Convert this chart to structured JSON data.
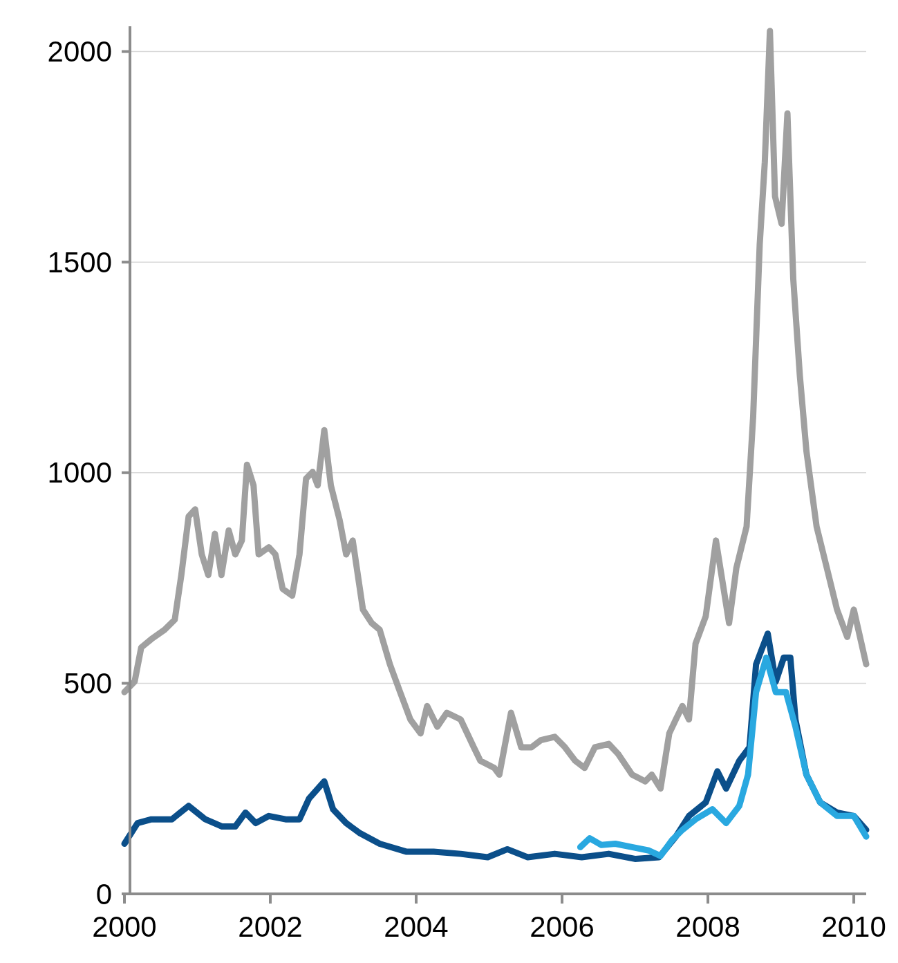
{
  "chart_data": {
    "type": "line",
    "xlim": [
      2000,
      2010.17
    ],
    "xticks": [
      2000,
      2002,
      2004,
      2006,
      2008,
      2010
    ],
    "ylim": [
      0,
      2060
    ],
    "yticks": [
      0,
      500,
      1000,
      1500,
      2000
    ],
    "grid": "y",
    "line_style": "solid",
    "marker": "none",
    "series": [
      {
        "color": "#a0a0a0",
        "x": [
          2000.0,
          2000.14,
          2000.23,
          2000.37,
          2000.55,
          2000.69,
          2000.78,
          2000.88,
          2000.97,
          2001.06,
          2001.15,
          2001.24,
          2001.33,
          2001.43,
          2001.52,
          2001.61,
          2001.68,
          2001.77,
          2001.84,
          2001.98,
          2002.07,
          2002.17,
          2002.3,
          2002.4,
          2002.49,
          2002.58,
          2002.65,
          2002.74,
          2002.83,
          2002.95,
          2003.04,
          2003.13,
          2003.27,
          2003.39,
          2003.5,
          2003.64,
          2003.78,
          2003.92,
          2004.06,
          2004.15,
          2004.29,
          2004.42,
          2004.61,
          2004.79,
          2004.88,
          2005.07,
          2005.14,
          2005.3,
          2005.44,
          2005.58,
          2005.71,
          2005.9,
          2006.04,
          2006.18,
          2006.31,
          2006.45,
          2006.64,
          2006.77,
          2006.96,
          2007.14,
          2007.23,
          2007.35,
          2007.47,
          2007.56,
          2007.65,
          2007.74,
          2007.83,
          2007.97,
          2008.11,
          2008.2,
          2008.29,
          2008.39,
          2008.53,
          2008.62,
          2008.71,
          2008.78,
          2008.85,
          2008.92,
          2009.01,
          2009.09,
          2009.17,
          2009.26,
          2009.35,
          2009.49,
          2009.63,
          2009.77,
          2009.91,
          2010.0,
          2010.17
        ],
        "values": [
          479,
          504,
          585,
          605,
          627,
          651,
          757,
          896,
          913,
          806,
          757,
          855,
          757,
          863,
          806,
          839,
          1019,
          970,
          806,
          823,
          806,
          724,
          708,
          806,
          986,
          1002,
          970,
          1101,
          970,
          888,
          806,
          839,
          675,
          643,
          627,
          545,
          479,
          414,
          381,
          446,
          397,
          430,
          414,
          348,
          316,
          299,
          283,
          430,
          348,
          348,
          365,
          373,
          348,
          316,
          299,
          348,
          356,
          332,
          283,
          267,
          283,
          250,
          381,
          414,
          446,
          414,
          594,
          659,
          839,
          741,
          643,
          774,
          872,
          1133,
          1542,
          1738,
          2049,
          1656,
          1591,
          1853,
          1460,
          1231,
          1052,
          872,
          774,
          675,
          610,
          675,
          545
        ]
      },
      {
        "color": "#0b4f8a",
        "x": [
          2000.0,
          2000.18,
          2000.37,
          2000.65,
          2000.88,
          2001.11,
          2001.34,
          2001.52,
          2001.66,
          2001.8,
          2001.98,
          2002.21,
          2002.4,
          2002.53,
          2002.74,
          2002.86,
          2003.04,
          2003.23,
          2003.5,
          2003.87,
          2004.24,
          2004.61,
          2004.98,
          2005.25,
          2005.53,
          2005.9,
          2006.27,
          2006.64,
          2007.0,
          2007.33,
          2007.56,
          2007.74,
          2007.97,
          2008.13,
          2008.25,
          2008.43,
          2008.57,
          2008.66,
          2008.82,
          2008.93,
          2009.04,
          2009.13,
          2009.2,
          2009.35,
          2009.54,
          2009.77,
          2010.0,
          2010.17
        ],
        "values": [
          119,
          168,
          177,
          177,
          209,
          177,
          160,
          160,
          193,
          168,
          185,
          177,
          177,
          226,
          267,
          201,
          168,
          144,
          119,
          100,
          100,
          95,
          87,
          106,
          87,
          95,
          87,
          95,
          83,
          87,
          136,
          185,
          217,
          291,
          250,
          316,
          348,
          545,
          618,
          504,
          561,
          561,
          414,
          283,
          217,
          193,
          185,
          152
        ]
      },
      {
        "color": "#29a8e0",
        "x": [
          2006.25,
          2006.38,
          2006.54,
          2006.73,
          2006.96,
          2007.19,
          2007.35,
          2007.51,
          2007.65,
          2007.83,
          2008.06,
          2008.25,
          2008.43,
          2008.55,
          2008.66,
          2008.8,
          2008.93,
          2009.07,
          2009.2,
          2009.35,
          2009.54,
          2009.77,
          2010.0,
          2010.17
        ],
        "values": [
          111,
          132,
          116,
          119,
          111,
          103,
          90,
          128,
          152,
          177,
          201,
          168,
          209,
          283,
          479,
          561,
          479,
          479,
          397,
          283,
          217,
          185,
          185,
          136
        ]
      }
    ]
  }
}
